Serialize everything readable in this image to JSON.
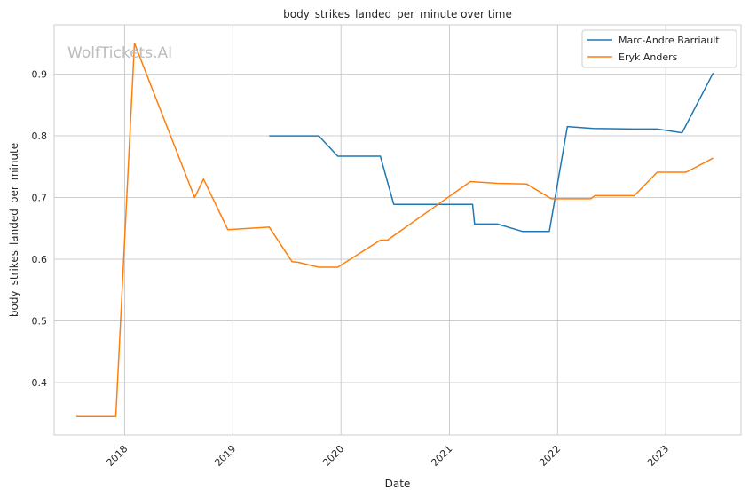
{
  "chart_data": {
    "type": "line",
    "title": "body_strikes_landed_per_minute over time",
    "xlabel": "Date",
    "ylabel": "body_strikes_landed_per_minute",
    "watermark": "WolfTickets.AI",
    "xlim": [
      "2017-05-08",
      "2023-09-12"
    ],
    "ylim": [
      0.315,
      0.98
    ],
    "x_ticks": [
      "2018-01-01",
      "2019-01-01",
      "2020-01-01",
      "2021-01-01",
      "2022-01-01",
      "2023-01-01"
    ],
    "x_tick_labels": [
      "2018",
      "2019",
      "2020",
      "2021",
      "2022",
      "2023"
    ],
    "y_ticks": [
      0.4,
      0.5,
      0.6,
      0.7,
      0.8,
      0.9
    ],
    "y_tick_labels": [
      "0.4",
      "0.5",
      "0.6",
      "0.7",
      "0.8",
      "0.9"
    ],
    "grid": true,
    "legend_position": "top-right",
    "series": [
      {
        "name": "Marc-Andre Barriault",
        "color": "#1f77b4",
        "points": [
          [
            "2019-05-04",
            0.8
          ],
          [
            "2019-10-18",
            0.8
          ],
          [
            "2019-12-21",
            0.767
          ],
          [
            "2020-05-13",
            0.767
          ],
          [
            "2020-06-27",
            0.689
          ],
          [
            "2021-03-20",
            0.689
          ],
          [
            "2021-03-27",
            0.657
          ],
          [
            "2021-06-12",
            0.657
          ],
          [
            "2021-09-04",
            0.645
          ],
          [
            "2021-12-04",
            0.645
          ],
          [
            "2022-02-03",
            0.815
          ],
          [
            "2022-05-01",
            0.812
          ],
          [
            "2022-09-17",
            0.811
          ],
          [
            "2022-12-03",
            0.811
          ],
          [
            "2023-02-25",
            0.805
          ],
          [
            "2023-06-10",
            0.902
          ]
        ]
      },
      {
        "name": "Eryk Anders",
        "color": "#ff7f0e",
        "points": [
          [
            "2017-07-22",
            0.345
          ],
          [
            "2017-12-02",
            0.345
          ],
          [
            "2018-02-03",
            0.95
          ],
          [
            "2018-08-25",
            0.7
          ],
          [
            "2018-09-24",
            0.73
          ],
          [
            "2018-12-15",
            0.648
          ],
          [
            "2019-05-04",
            0.652
          ],
          [
            "2019-07-20",
            0.596
          ],
          [
            "2019-08-10",
            0.595
          ],
          [
            "2019-10-18",
            0.587
          ],
          [
            "2019-12-21",
            0.587
          ],
          [
            "2020-05-13",
            0.631
          ],
          [
            "2020-06-06",
            0.631
          ],
          [
            "2021-03-13",
            0.726
          ],
          [
            "2021-06-12",
            0.723
          ],
          [
            "2021-09-18",
            0.722
          ],
          [
            "2021-12-11",
            0.698
          ],
          [
            "2022-04-23",
            0.698
          ],
          [
            "2022-05-07",
            0.703
          ],
          [
            "2022-09-17",
            0.703
          ],
          [
            "2022-12-03",
            0.741
          ],
          [
            "2023-03-11",
            0.741
          ],
          [
            "2023-06-10",
            0.764
          ]
        ]
      }
    ]
  }
}
